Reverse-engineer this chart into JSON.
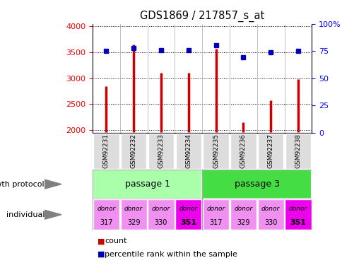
{
  "title": "GDS1869 / 217857_s_at",
  "samples": [
    "GSM92231",
    "GSM92232",
    "GSM92233",
    "GSM92234",
    "GSM92235",
    "GSM92236",
    "GSM92237",
    "GSM92238"
  ],
  "counts": [
    2850,
    3650,
    3100,
    3100,
    3575,
    2150,
    2575,
    2980
  ],
  "percentiles": [
    75,
    78,
    76,
    76,
    80,
    69,
    74,
    75
  ],
  "ylim_left": [
    1950,
    4050
  ],
  "ylim_right": [
    0,
    100
  ],
  "yticks_left": [
    2000,
    2500,
    3000,
    3500,
    4000
  ],
  "yticks_right": [
    0,
    25,
    50,
    75,
    100
  ],
  "passage1_color": "#aaffaa",
  "passage3_color": "#44dd44",
  "individual": [
    "317",
    "329",
    "330",
    "351",
    "317",
    "329",
    "330",
    "351"
  ],
  "donor_colors_light": "#f090f0",
  "donor_colors_bold": "#ee00ee",
  "bar_color": "#cc0000",
  "dot_color": "#0000bb",
  "bar_bottom": 1950,
  "sample_box_color": "#dddddd",
  "label_gp": "growth protocol",
  "label_ind": "individual"
}
